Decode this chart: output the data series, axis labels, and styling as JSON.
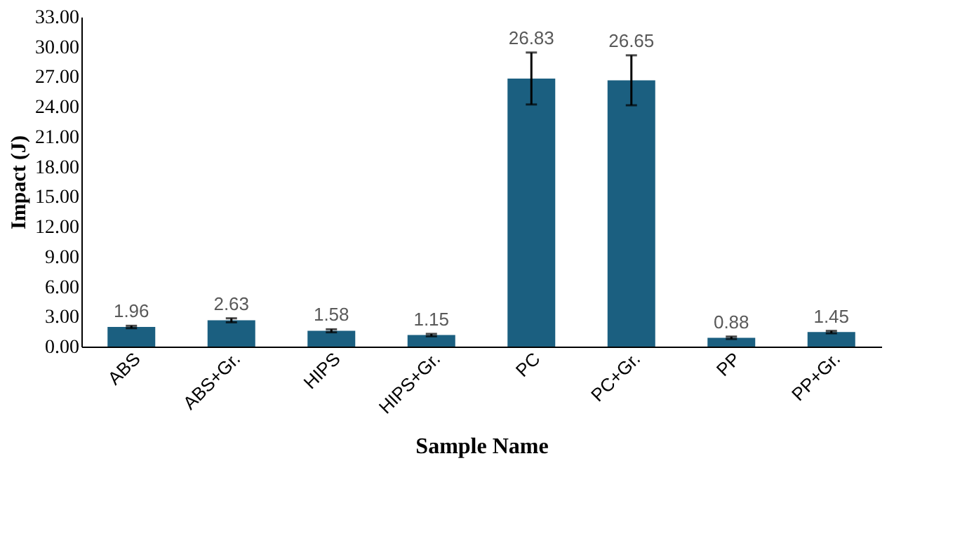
{
  "chart_data": {
    "type": "bar",
    "xlabel": "Sample Name",
    "ylabel": "Impact (J)",
    "categories": [
      "ABS",
      "ABS+Gr.",
      "HIPS",
      "HIPS+Gr.",
      "PC",
      "PC+Gr.",
      "PP",
      "PP+Gr."
    ],
    "values": [
      1.96,
      2.63,
      1.58,
      1.15,
      26.83,
      26.65,
      0.88,
      1.45
    ],
    "errors": [
      0.12,
      0.2,
      0.15,
      0.12,
      2.6,
      2.5,
      0.12,
      0.12
    ],
    "color": "#1b5f80",
    "data_labels": true,
    "grid": false,
    "ylim": [
      0,
      33
    ],
    "yticks": [
      {
        "value": 0,
        "label": "0.00"
      },
      {
        "value": 3,
        "label": "3.00"
      },
      {
        "value": 6,
        "label": "6.00"
      },
      {
        "value": 9,
        "label": "9.00"
      },
      {
        "value": 12,
        "label": "12.00"
      },
      {
        "value": 15,
        "label": "15.00"
      },
      {
        "value": 18,
        "label": "18.00"
      },
      {
        "value": 21,
        "label": "21.00"
      },
      {
        "value": 24,
        "label": "24.00"
      },
      {
        "value": 27,
        "label": "27.00"
      },
      {
        "value": 30,
        "label": "30.00"
      },
      {
        "value": 33,
        "label": "33.00"
      }
    ]
  }
}
